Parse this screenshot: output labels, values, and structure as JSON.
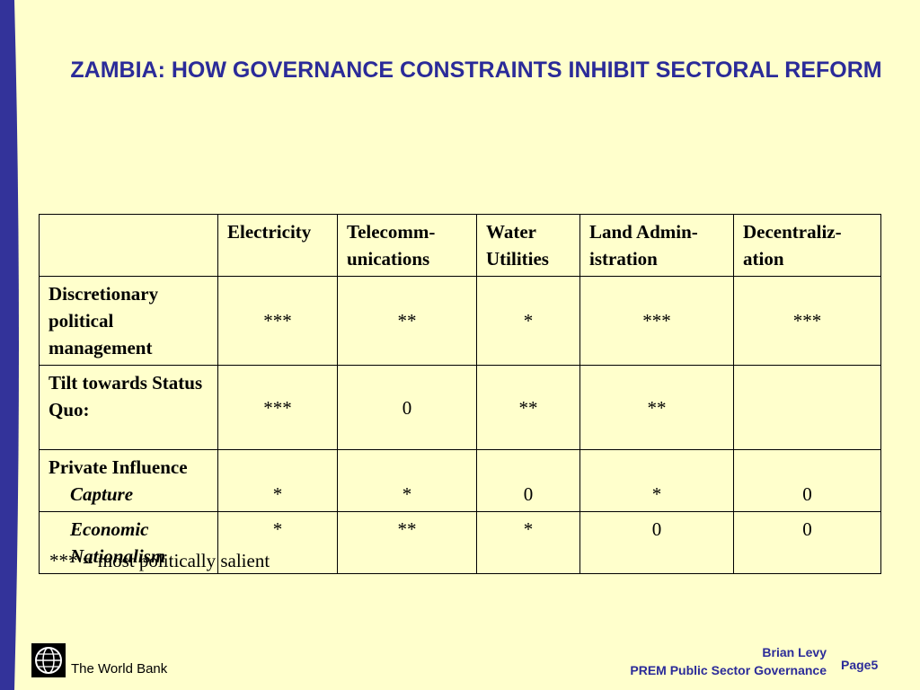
{
  "title": "ZAMBIA: HOW GOVERNANCE CONSTRAINTS INHIBIT SECTORAL REFORM",
  "table": {
    "columns": [
      "Electricity",
      "Telecomm-unications",
      "Water Utilities",
      "Land Admin-istration",
      "Decentraliz-ation"
    ],
    "rows": [
      {
        "label": "Discretionary political management",
        "values": [
          "***",
          "**",
          "*",
          "***",
          "***"
        ]
      },
      {
        "label": "Tilt towards Status Quo:",
        "values": [
          "***",
          "0",
          "**",
          "**",
          ""
        ]
      },
      {
        "label": "Private Influence",
        "sub": "Capture",
        "values": [
          "*",
          "*",
          "0",
          "*",
          "0"
        ]
      },
      {
        "label": "Economic Nationalism",
        "values": [
          "*",
          "**",
          "*",
          "0",
          "0"
        ]
      }
    ]
  },
  "note": "*** = most politically salient",
  "footer": {
    "brand": "The World Bank",
    "author": "Brian Levy",
    "unit": "PREM Public Sector Governance",
    "page": "Page5"
  },
  "colors": {
    "background": "#ffffcc",
    "accent": "#2b2b99",
    "sidebar": "#33339a"
  },
  "icons": {
    "logo": "world-bank-globe-icon"
  }
}
